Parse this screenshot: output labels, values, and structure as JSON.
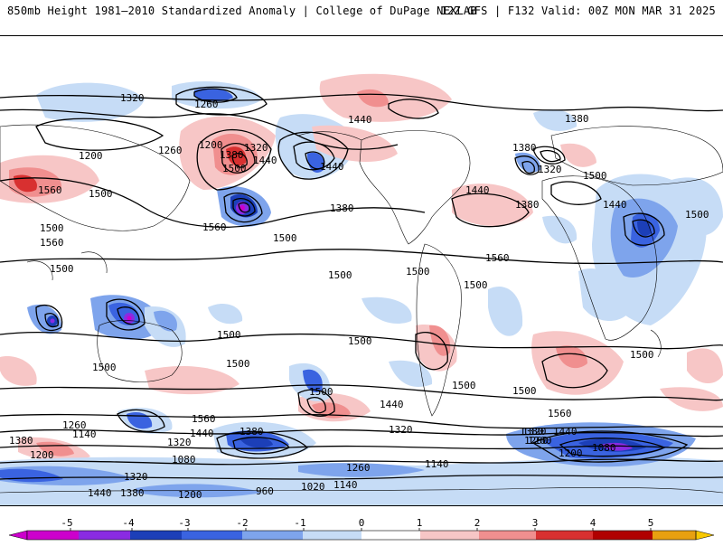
{
  "header": {
    "left_title": "850mb Height 1981–2010 Standardized Anomaly | College of DuPage NEXLAB",
    "right_title": "12Z GFS | F132 Valid: 00Z MON MAR 31 2025"
  },
  "colorbar": {
    "ticks": [
      "-5",
      "-4",
      "-3",
      "-2",
      "-1",
      "0",
      "1",
      "2",
      "3",
      "4",
      "5"
    ],
    "colors": [
      "#cc00cc",
      "#8a2be2",
      "#1c3fb8",
      "#3a63e0",
      "#7ea4ec",
      "#c6dcf6",
      "#ffffff",
      "#ffffff",
      "#f7c6c6",
      "#f08f8f",
      "#d83030",
      "#b00000",
      "#e8a010",
      "#f8c800"
    ]
  },
  "contour_labels": [
    {
      "text": "1320"
    },
    {
      "text": "1260"
    },
    {
      "text": "1440"
    },
    {
      "text": "1380"
    },
    {
      "text": "1200"
    },
    {
      "text": "1260"
    },
    {
      "text": "1200"
    },
    {
      "text": "1380"
    },
    {
      "text": "1440"
    },
    {
      "text": "1320"
    },
    {
      "text": "1500"
    },
    {
      "text": "1440"
    },
    {
      "text": "1380"
    },
    {
      "text": "1320"
    },
    {
      "text": "1560"
    },
    {
      "text": "1500"
    },
    {
      "text": "1500"
    },
    {
      "text": "1560"
    },
    {
      "text": "1380"
    },
    {
      "text": "1440"
    },
    {
      "text": "1380"
    },
    {
      "text": "1500"
    },
    {
      "text": "1440"
    },
    {
      "text": "1500"
    },
    {
      "text": "1560"
    },
    {
      "text": "1560"
    },
    {
      "text": "1500"
    },
    {
      "text": "1500"
    },
    {
      "text": "1500"
    },
    {
      "text": "1500"
    },
    {
      "text": "1500"
    },
    {
      "text": "1500"
    },
    {
      "text": "1500"
    },
    {
      "text": "1500"
    },
    {
      "text": "1500"
    },
    {
      "text": "1500"
    },
    {
      "text": "1500"
    },
    {
      "text": "1560"
    },
    {
      "text": "1500"
    },
    {
      "text": "1500"
    },
    {
      "text": "1440"
    },
    {
      "text": "1560"
    },
    {
      "text": "1260"
    },
    {
      "text": "1140"
    },
    {
      "text": "1380"
    },
    {
      "text": "1440"
    },
    {
      "text": "1320"
    },
    {
      "text": "1200"
    },
    {
      "text": "1320"
    },
    {
      "text": "1380"
    },
    {
      "text": "1260"
    },
    {
      "text": "1320"
    },
    {
      "text": "1380"
    },
    {
      "text": "1440"
    },
    {
      "text": "1260"
    },
    {
      "text": "1200"
    },
    {
      "text": "1140"
    },
    {
      "text": "1080"
    },
    {
      "text": "1080"
    },
    {
      "text": "1320"
    },
    {
      "text": "1380"
    },
    {
      "text": "1440"
    },
    {
      "text": "1200"
    },
    {
      "text": "960"
    },
    {
      "text": "1020"
    },
    {
      "text": "1140"
    },
    {
      "text": "1260"
    },
    {
      "text": "1200"
    },
    {
      "text": "1140"
    },
    {
      "text": "1080"
    },
    {
      "text": "1080"
    },
    {
      "text": "1020"
    },
    {
      "text": "1140"
    },
    {
      "text": "1080"
    },
    {
      "text": "1200"
    },
    {
      "text": "1320"
    },
    {
      "text": "1260"
    },
    {
      "text": "1200"
    },
    {
      "text": "1140"
    },
    {
      "text": "1020"
    },
    {
      "text": "1080"
    },
    {
      "text": "1200"
    }
  ]
}
